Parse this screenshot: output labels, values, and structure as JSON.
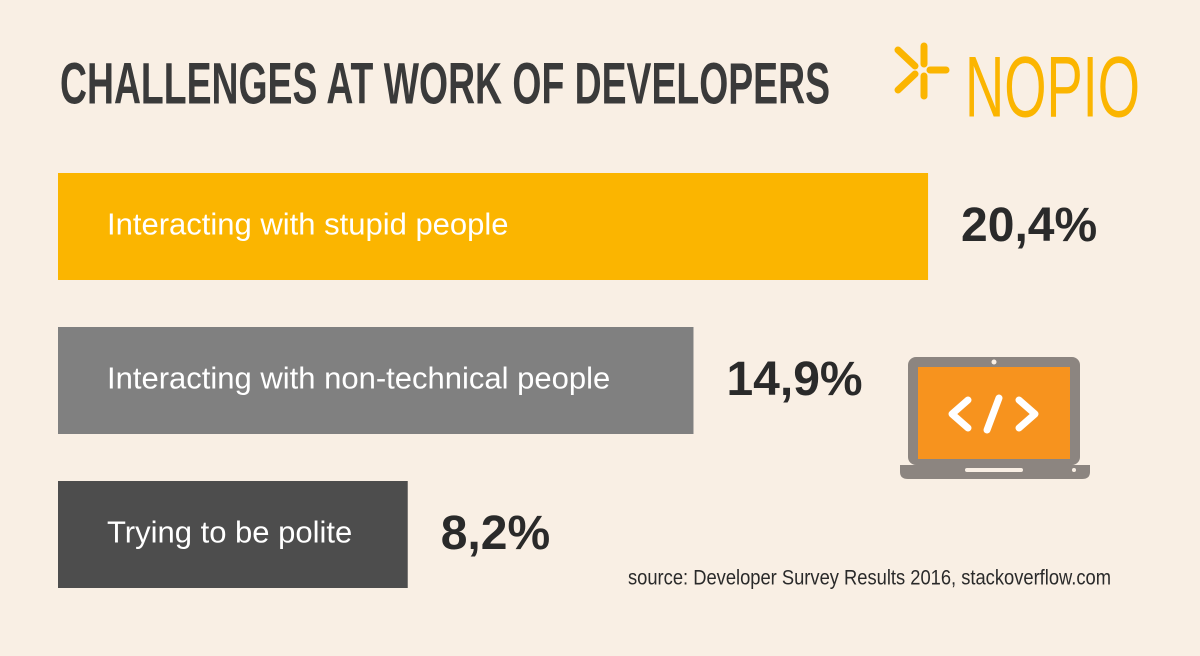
{
  "chart_data": {
    "type": "bar",
    "orientation": "horizontal",
    "title": "CHALLENGES AT WORK OF DEVELOPERS",
    "logo": "NOPIO",
    "categories": [
      "Interacting with stupid people",
      "Interacting with non-technical people",
      "Trying to be polite"
    ],
    "values": [
      20.4,
      14.9,
      8.2
    ],
    "value_labels": [
      "20,4%",
      "14,9%",
      "8,2%"
    ],
    "colors": [
      "#fbb500",
      "#808080",
      "#4d4d4d"
    ],
    "source": "source: Developer Survey Results 2016, stackoverflow.com"
  }
}
